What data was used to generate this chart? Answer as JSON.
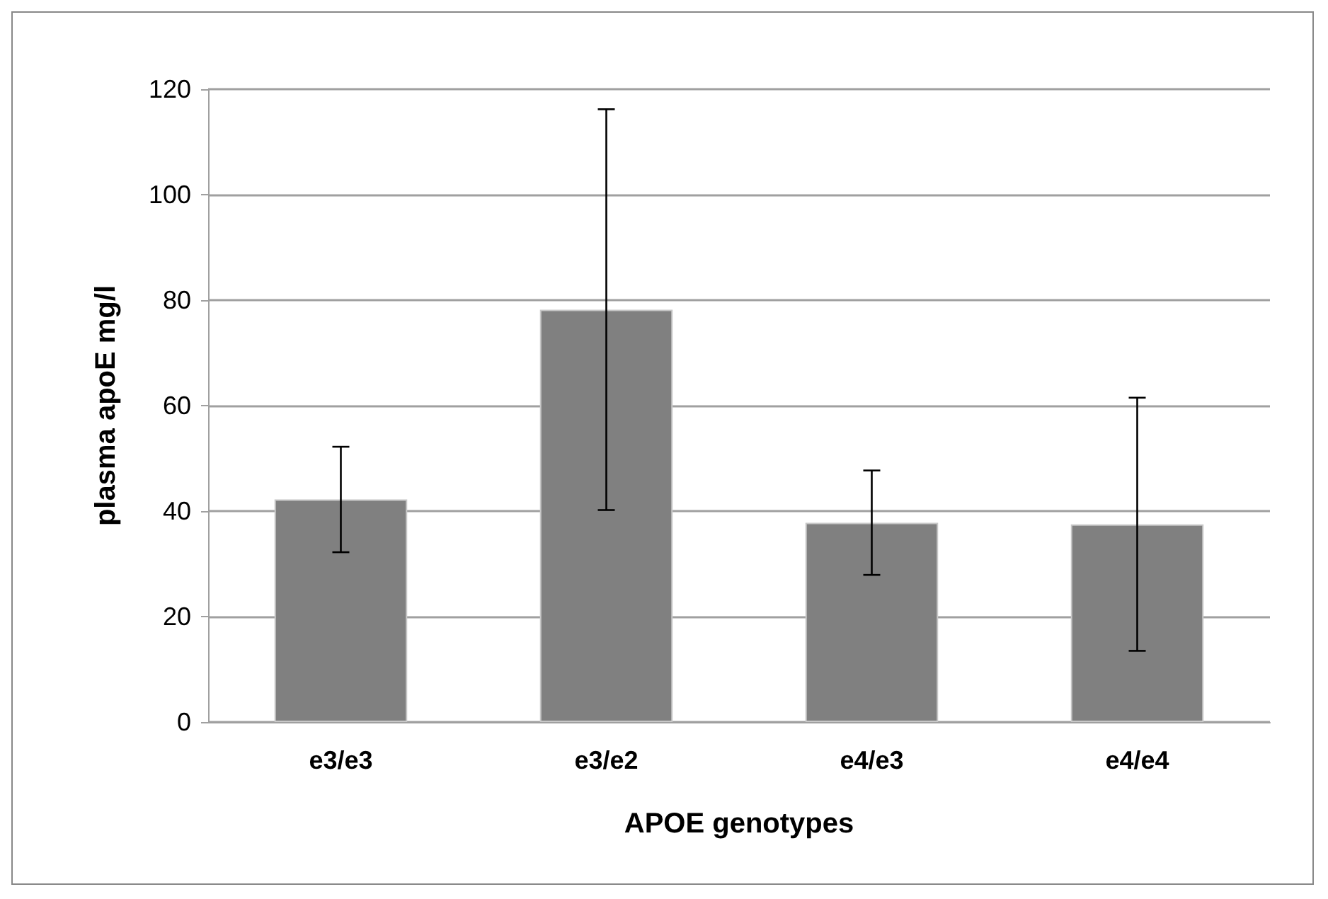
{
  "chart_data": {
    "type": "bar",
    "xlabel": "APOE genotypes",
    "ylabel": "plasma apoE mg/l",
    "categories": [
      "e3/e3",
      "e3/e2",
      "e4/e3",
      "e4/e4"
    ],
    "values": [
      42.2,
      78.2,
      37.8,
      37.5
    ],
    "errors": [
      10,
      38,
      9.9,
      24
    ],
    "color": "#808080",
    "ylim": [
      0,
      120
    ],
    "yticks": [
      0,
      20,
      40,
      60,
      80,
      100,
      120
    ],
    "grid": "y"
  }
}
